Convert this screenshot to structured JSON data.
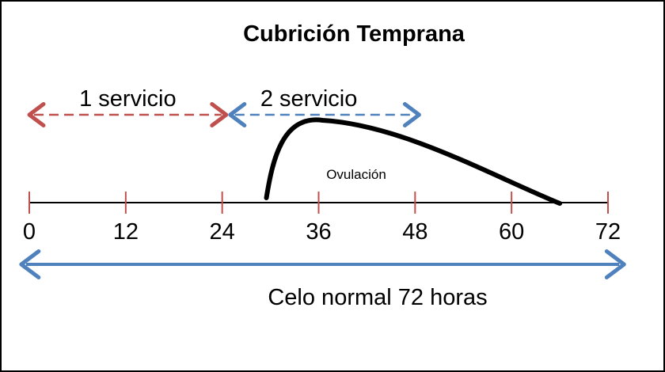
{
  "title": "Cubrición Temprana",
  "axis": {
    "unit_max": 72,
    "ticks": [
      {
        "value": 0,
        "label": "0"
      },
      {
        "value": 12,
        "label": "12"
      },
      {
        "value": 24,
        "label": "24"
      },
      {
        "value": 36,
        "label": "36"
      },
      {
        "value": 48,
        "label": "48"
      },
      {
        "value": 60,
        "label": "60"
      },
      {
        "value": 72,
        "label": "72"
      }
    ]
  },
  "services": [
    {
      "label": "1 servicio",
      "start": 0,
      "end": 24.5,
      "color": "#c0504d"
    },
    {
      "label": "2 servicio",
      "start": 25,
      "end": 48.5,
      "color": "#4f81bd"
    }
  ],
  "ovulation": {
    "label": "Ovulación",
    "start": 29.5,
    "peak": 36.5,
    "end": 66
  },
  "normal_heat": {
    "label": "Celo normal 72 horas",
    "start": -1,
    "end": 74,
    "color": "#4f81bd"
  },
  "colors": {
    "tick": "#c0504d",
    "axis": "#000000",
    "curve": "#000000"
  }
}
